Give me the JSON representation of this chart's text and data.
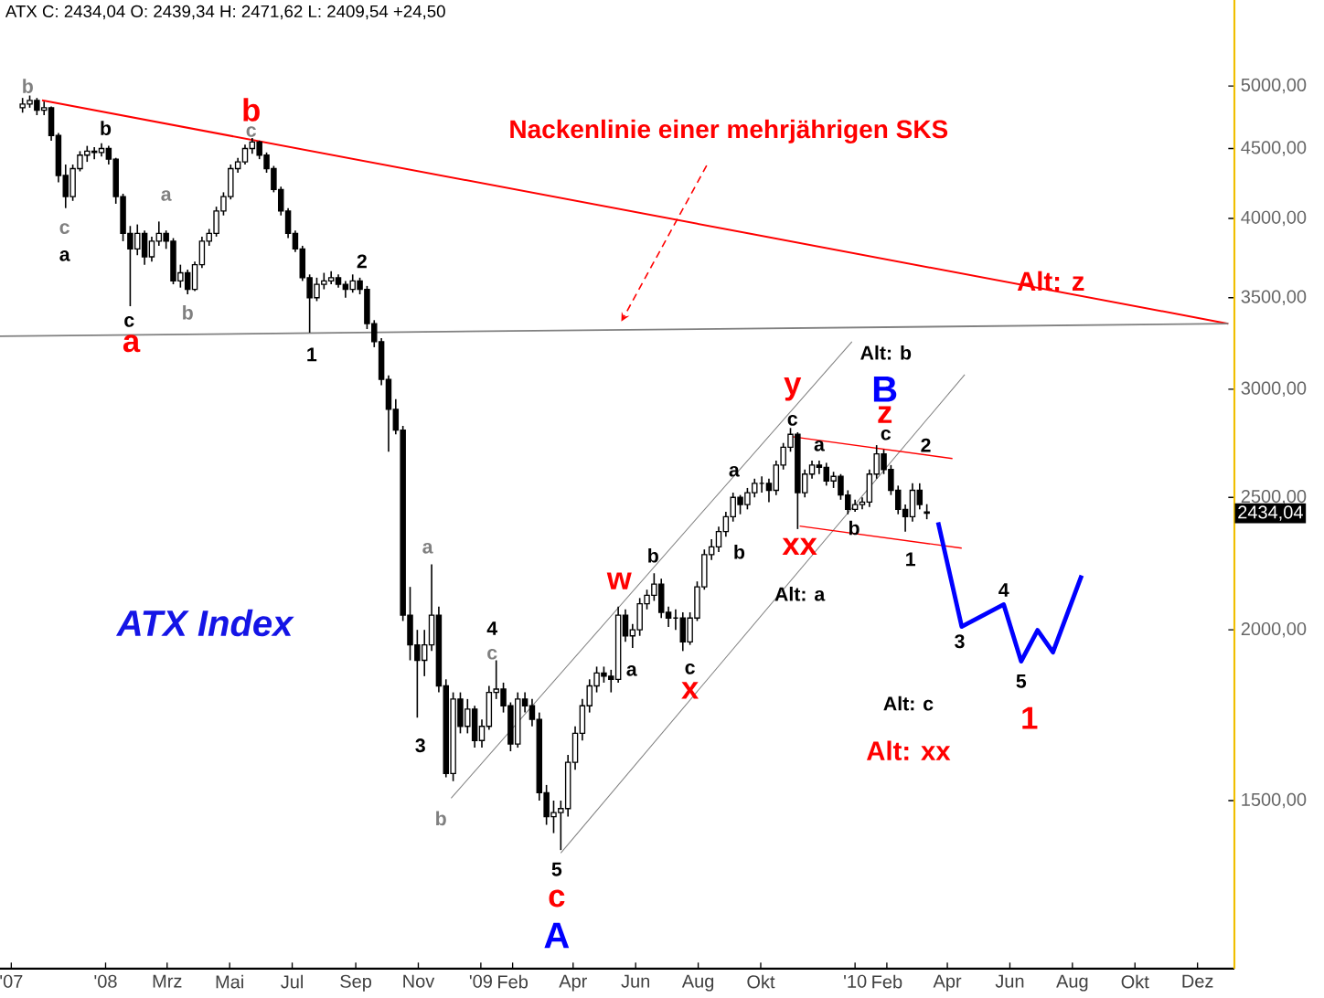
{
  "chart_data": {
    "type": "candlestick",
    "title": "ATX Index",
    "subtitle": "ATX C: 2434,04 O: 2439,34 H: 2471,62 L: 2409,54 +24,50",
    "color": "#000000",
    "log": true,
    "xlim": [
      "2007-09-20",
      "2011-01-06"
    ],
    "ylim": [
      1130,
      5780
    ],
    "xticks": [
      {
        "value": "2007-10-01",
        "label": "'07"
      },
      {
        "value": "2008-01-01",
        "label": "'08"
      },
      {
        "value": "2008-03-01",
        "label": "Mrz"
      },
      {
        "value": "2008-05-01",
        "label": "Mai"
      },
      {
        "value": "2008-07-01",
        "label": "Jul"
      },
      {
        "value": "2008-09-01",
        "label": "Sep"
      },
      {
        "value": "2008-11-01",
        "label": "Nov"
      },
      {
        "value": "2009-01-01",
        "label": "'09"
      },
      {
        "value": "2009-02-01",
        "label": "Feb"
      },
      {
        "value": "2009-04-01",
        "label": "Apr"
      },
      {
        "value": "2009-06-01",
        "label": "Jun"
      },
      {
        "value": "2009-08-01",
        "label": "Aug"
      },
      {
        "value": "2009-10-01",
        "label": "Okt"
      },
      {
        "value": "2010-01-01",
        "label": "'10"
      },
      {
        "value": "2010-02-01",
        "label": "Feb"
      },
      {
        "value": "2010-04-01",
        "label": "Apr"
      },
      {
        "value": "2010-06-01",
        "label": "Jun"
      },
      {
        "value": "2010-08-01",
        "label": "Aug"
      },
      {
        "value": "2010-10-01",
        "label": "Okt"
      },
      {
        "value": "2010-12-01",
        "label": "Dez"
      }
    ],
    "yticks": [
      {
        "value": 1500,
        "label": "1500,00"
      },
      {
        "value": 2000,
        "label": "2000,00"
      },
      {
        "value": 2500,
        "label": "2500,00"
      },
      {
        "value": 3000,
        "label": "3000,00"
      },
      {
        "value": 3500,
        "label": "3500,00"
      },
      {
        "value": 4000,
        "label": "4000,00"
      },
      {
        "value": 4500,
        "label": "4500,00"
      },
      {
        "value": 5000,
        "label": "5000,00"
      }
    ],
    "x": [
      "2007-10-12",
      "2007-10-19",
      "2007-10-26",
      "2007-11-02",
      "2007-11-09",
      "2007-11-16",
      "2007-11-23",
      "2007-11-30",
      "2007-12-07",
      "2007-12-14",
      "2007-12-21",
      "2007-12-28",
      "2008-01-04",
      "2008-01-11",
      "2008-01-18",
      "2008-01-25",
      "2008-02-01",
      "2008-02-08",
      "2008-02-15",
      "2008-02-22",
      "2008-02-29",
      "2008-03-07",
      "2008-03-14",
      "2008-03-21",
      "2008-03-28",
      "2008-04-04",
      "2008-04-11",
      "2008-04-18",
      "2008-04-25",
      "2008-05-02",
      "2008-05-09",
      "2008-05-16",
      "2008-05-23",
      "2008-05-30",
      "2008-06-06",
      "2008-06-13",
      "2008-06-20",
      "2008-06-27",
      "2008-07-04",
      "2008-07-11",
      "2008-07-18",
      "2008-07-25",
      "2008-08-01",
      "2008-08-08",
      "2008-08-15",
      "2008-08-22",
      "2008-08-29",
      "2008-09-05",
      "2008-09-12",
      "2008-09-19",
      "2008-09-26",
      "2008-10-03",
      "2008-10-10",
      "2008-10-17",
      "2008-10-24",
      "2008-10-31",
      "2008-11-07",
      "2008-11-14",
      "2008-11-21",
      "2008-11-28",
      "2008-12-05",
      "2008-12-12",
      "2008-12-19",
      "2008-12-26",
      "2009-01-02",
      "2009-01-09",
      "2009-01-16",
      "2009-01-23",
      "2009-01-30",
      "2009-02-06",
      "2009-02-13",
      "2009-02-20",
      "2009-02-27",
      "2009-03-06",
      "2009-03-13",
      "2009-03-20",
      "2009-03-27",
      "2009-04-03",
      "2009-04-10",
      "2009-04-17",
      "2009-04-24",
      "2009-05-01",
      "2009-05-08",
      "2009-05-15",
      "2009-05-22",
      "2009-05-29",
      "2009-06-05",
      "2009-06-12",
      "2009-06-19",
      "2009-06-26",
      "2009-07-03",
      "2009-07-10",
      "2009-07-17",
      "2009-07-24",
      "2009-07-31",
      "2009-08-07",
      "2009-08-14",
      "2009-08-21",
      "2009-08-28",
      "2009-09-04",
      "2009-09-11",
      "2009-09-18",
      "2009-09-25",
      "2009-10-02",
      "2009-10-09",
      "2009-10-16",
      "2009-10-23",
      "2009-10-30",
      "2009-11-06",
      "2009-11-13",
      "2009-11-20",
      "2009-11-27",
      "2009-12-04",
      "2009-12-11",
      "2009-12-18",
      "2009-12-25",
      "2010-01-01",
      "2010-01-08",
      "2010-01-15",
      "2010-01-22",
      "2010-01-29",
      "2010-02-05",
      "2010-02-12",
      "2010-02-19",
      "2010-02-26",
      "2010-03-05",
      "2010-03-12"
    ],
    "ohlc": [
      [
        4820,
        4900,
        4780,
        4850
      ],
      [
        4850,
        4920,
        4820,
        4880
      ],
      [
        4880,
        4900,
        4760,
        4800
      ],
      [
        4800,
        4870,
        4760,
        4820
      ],
      [
        4820,
        4830,
        4560,
        4600
      ],
      [
        4600,
        4620,
        4250,
        4300
      ],
      [
        4300,
        4380,
        4070,
        4150
      ],
      [
        4150,
        4380,
        4120,
        4350
      ],
      [
        4350,
        4480,
        4330,
        4450
      ],
      [
        4450,
        4520,
        4400,
        4480
      ],
      [
        4480,
        4510,
        4420,
        4470
      ],
      [
        4470,
        4540,
        4440,
        4500
      ],
      [
        4500,
        4520,
        4380,
        4420
      ],
      [
        4420,
        4430,
        4100,
        4150
      ],
      [
        4150,
        4170,
        3850,
        3900
      ],
      [
        3900,
        3950,
        3450,
        3800
      ],
      [
        3800,
        3960,
        3760,
        3900
      ],
      [
        3900,
        3920,
        3700,
        3750
      ],
      [
        3750,
        3880,
        3720,
        3850
      ],
      [
        3850,
        3980,
        3820,
        3900
      ],
      [
        3900,
        3920,
        3800,
        3850
      ],
      [
        3850,
        3870,
        3580,
        3600
      ],
      [
        3600,
        3700,
        3560,
        3650
      ],
      [
        3650,
        3670,
        3520,
        3550
      ],
      [
        3550,
        3720,
        3540,
        3700
      ],
      [
        3700,
        3880,
        3680,
        3850
      ],
      [
        3850,
        3930,
        3820,
        3900
      ],
      [
        3900,
        4080,
        3880,
        4050
      ],
      [
        4050,
        4180,
        4020,
        4150
      ],
      [
        4150,
        4380,
        4130,
        4350
      ],
      [
        4350,
        4430,
        4320,
        4400
      ],
      [
        4400,
        4530,
        4380,
        4500
      ],
      [
        4500,
        4580,
        4460,
        4550
      ],
      [
        4550,
        4560,
        4420,
        4450
      ],
      [
        4450,
        4470,
        4320,
        4350
      ],
      [
        4350,
        4370,
        4180,
        4200
      ],
      [
        4200,
        4220,
        4020,
        4050
      ],
      [
        4050,
        4070,
        3870,
        3900
      ],
      [
        3900,
        3920,
        3780,
        3800
      ],
      [
        3800,
        3820,
        3600,
        3620
      ],
      [
        3620,
        3640,
        3300,
        3500
      ],
      [
        3500,
        3620,
        3480,
        3580
      ],
      [
        3580,
        3650,
        3550,
        3600
      ],
      [
        3600,
        3660,
        3580,
        3620
      ],
      [
        3620,
        3640,
        3560,
        3580
      ],
      [
        3580,
        3600,
        3500,
        3550
      ],
      [
        3550,
        3640,
        3530,
        3600
      ],
      [
        3600,
        3620,
        3520,
        3550
      ],
      [
        3550,
        3570,
        3320,
        3350
      ],
      [
        3350,
        3370,
        3220,
        3250
      ],
      [
        3250,
        3270,
        3020,
        3050
      ],
      [
        3050,
        3070,
        2700,
        2900
      ],
      [
        2900,
        2950,
        2780,
        2800
      ],
      [
        2800,
        2820,
        2030,
        2050
      ],
      [
        2050,
        2150,
        1900,
        1950
      ],
      [
        1950,
        2000,
        1725,
        1900
      ],
      [
        1900,
        2000,
        1850,
        1950
      ],
      [
        1950,
        2233,
        1930,
        2050
      ],
      [
        2050,
        2080,
        1800,
        1820
      ],
      [
        1820,
        1840,
        1560,
        1570
      ],
      [
        1570,
        1800,
        1550,
        1780
      ],
      [
        1780,
        1800,
        1680,
        1700
      ],
      [
        1700,
        1780,
        1680,
        1750
      ],
      [
        1750,
        1760,
        1640,
        1660
      ],
      [
        1660,
        1720,
        1640,
        1700
      ],
      [
        1700,
        1820,
        1690,
        1800
      ],
      [
        1800,
        1900,
        1780,
        1810
      ],
      [
        1810,
        1830,
        1740,
        1760
      ],
      [
        1760,
        1770,
        1630,
        1650
      ],
      [
        1650,
        1800,
        1640,
        1780
      ],
      [
        1780,
        1800,
        1740,
        1760
      ],
      [
        1760,
        1780,
        1700,
        1720
      ],
      [
        1720,
        1740,
        1500,
        1520
      ],
      [
        1520,
        1540,
        1440,
        1460
      ],
      [
        1460,
        1500,
        1420,
        1470
      ],
      [
        1470,
        1500,
        1380,
        1480
      ],
      [
        1480,
        1620,
        1460,
        1600
      ],
      [
        1600,
        1700,
        1580,
        1680
      ],
      [
        1680,
        1780,
        1660,
        1760
      ],
      [
        1760,
        1840,
        1740,
        1820
      ],
      [
        1820,
        1880,
        1800,
        1860
      ],
      [
        1860,
        1880,
        1830,
        1850
      ],
      [
        1850,
        1870,
        1800,
        1840
      ],
      [
        1840,
        2080,
        1830,
        2050
      ],
      [
        2050,
        2070,
        1960,
        1980
      ],
      [
        1980,
        2020,
        1940,
        2000
      ],
      [
        2000,
        2110,
        1980,
        2090
      ],
      [
        2090,
        2140,
        2070,
        2120
      ],
      [
        2120,
        2200,
        2100,
        2160
      ],
      [
        2160,
        2180,
        2040,
        2060
      ],
      [
        2060,
        2080,
        2010,
        2040
      ],
      [
        2040,
        2070,
        2000,
        2040
      ],
      [
        2040,
        2060,
        1930,
        1960
      ],
      [
        1960,
        2060,
        1950,
        2040
      ],
      [
        2040,
        2170,
        2030,
        2150
      ],
      [
        2150,
        2290,
        2140,
        2270
      ],
      [
        2270,
        2330,
        2250,
        2300
      ],
      [
        2300,
        2380,
        2280,
        2360
      ],
      [
        2360,
        2440,
        2340,
        2420
      ],
      [
        2420,
        2520,
        2400,
        2500
      ],
      [
        2500,
        2510,
        2430,
        2470
      ],
      [
        2470,
        2540,
        2450,
        2520
      ],
      [
        2520,
        2580,
        2500,
        2560
      ],
      [
        2560,
        2590,
        2520,
        2560
      ],
      [
        2560,
        2580,
        2480,
        2530
      ],
      [
        2530,
        2660,
        2510,
        2640
      ],
      [
        2640,
        2740,
        2620,
        2720
      ],
      [
        2720,
        2810,
        2700,
        2780
      ],
      [
        2780,
        2790,
        2370,
        2520
      ],
      [
        2520,
        2620,
        2500,
        2600
      ],
      [
        2600,
        2660,
        2580,
        2640
      ],
      [
        2640,
        2660,
        2600,
        2630
      ],
      [
        2630,
        2650,
        2550,
        2570
      ],
      [
        2570,
        2610,
        2540,
        2590
      ],
      [
        2590,
        2600,
        2490,
        2510
      ],
      [
        2510,
        2530,
        2430,
        2450
      ],
      [
        2450,
        2490,
        2440,
        2470
      ],
      [
        2470,
        2500,
        2450,
        2480
      ],
      [
        2480,
        2620,
        2460,
        2600
      ],
      [
        2600,
        2730,
        2580,
        2690
      ],
      [
        2690,
        2710,
        2600,
        2620
      ],
      [
        2620,
        2640,
        2510,
        2530
      ],
      [
        2530,
        2550,
        2430,
        2450
      ],
      [
        2450,
        2470,
        2360,
        2420
      ],
      [
        2420,
        2560,
        2400,
        2530
      ],
      [
        2530,
        2560,
        2450,
        2470
      ],
      [
        2439.34,
        2471.62,
        2409.54,
        2434.04
      ]
    ],
    "series": [
      {
        "type": "line",
        "color": "#ff0000",
        "x": [
          "2007-10-31",
          "2010-12-31"
        ],
        "values": [
          4880,
          3350
        ]
      },
      {
        "type": "line",
        "color": "#808080",
        "x": [
          "2007-09-20",
          "2010-12-31"
        ],
        "values": [
          3280,
          3350
        ]
      },
      {
        "type": "line",
        "color": "#808080",
        "x": [
          "2008-12-03",
          "2009-12-29"
        ],
        "values": [
          1506,
          3250
        ]
      },
      {
        "type": "line",
        "color": "#808080",
        "x": [
          "2009-03-20",
          "2010-04-18"
        ],
        "values": [
          1373,
          3075
        ]
      },
      {
        "type": "line",
        "color": "#ff0000",
        "x": [
          "2009-11-01",
          "2010-04-06"
        ],
        "values": [
          2769,
          2669
        ]
      },
      {
        "type": "line",
        "color": "#ff0000",
        "x": [
          "2009-11-08",
          "2010-04-15"
        ],
        "values": [
          2382,
          2295
        ]
      },
      {
        "type": "line",
        "color": "#0000ff",
        "x": [
          "2010-03-23",
          "2010-04-15",
          "2010-05-26",
          "2010-06-12",
          "2010-06-28",
          "2010-07-13",
          "2010-08-10"
        ],
        "values": [
          2397,
          2011,
          2087,
          1897,
          1999,
          1926,
          2192
        ]
      }
    ],
    "annotations": [
      "b",
      "b",
      "c",
      "a",
      "c",
      "a",
      "b",
      "c",
      "a",
      "b",
      "1",
      "2",
      "a",
      "3",
      "b",
      "4",
      "c",
      "w",
      "a",
      "5",
      "c",
      "A",
      "b",
      "b",
      "c",
      "x",
      "a",
      "c",
      "y",
      "xx",
      "a",
      "b",
      "B",
      "z",
      "c",
      "2",
      "1",
      "Alt: b",
      "Alt: a",
      "3",
      "4",
      "5",
      "1",
      "Alt: c",
      "Alt: xx",
      "Alt: z",
      {
        "text": "Nackenlinie einer mehrjährigen SKS",
        "x": "2009-05-18",
        "y": 3362
      },
      "2434,04"
    ]
  }
}
